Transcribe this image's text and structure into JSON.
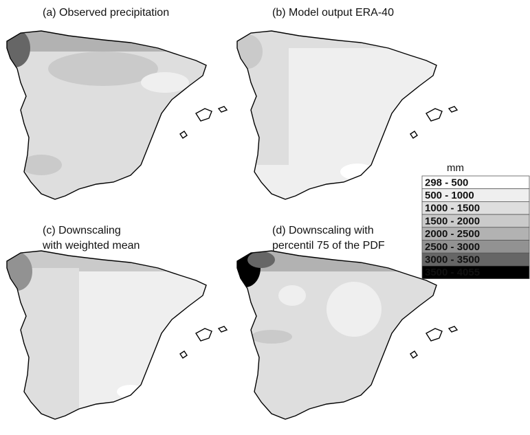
{
  "panels": [
    {
      "title": [
        "(a) Observed precipitation"
      ]
    },
    {
      "title": [
        "(b) Model output ERA-40"
      ]
    },
    {
      "title": [
        "(c) Downscaling",
        "with weighted mean"
      ]
    },
    {
      "title": [
        "(d) Downscaling with",
        "percentil 75 of the PDF"
      ]
    }
  ],
  "legend": {
    "unit": "mm",
    "items": [
      {
        "label": "298 - 500",
        "color": "#ffffff"
      },
      {
        "label": "500 - 1000",
        "color": "#efefef"
      },
      {
        "label": "1000 - 1500",
        "color": "#dedede"
      },
      {
        "label": "1500 - 2000",
        "color": "#cacaca"
      },
      {
        "label": "2000 - 2500",
        "color": "#b2b2b2"
      },
      {
        "label": "2500 - 3000",
        "color": "#929292"
      },
      {
        "label": "3000 - 3500",
        "color": "#666666"
      },
      {
        "label": "3500 - 4055",
        "color": "#000000"
      }
    ]
  }
}
